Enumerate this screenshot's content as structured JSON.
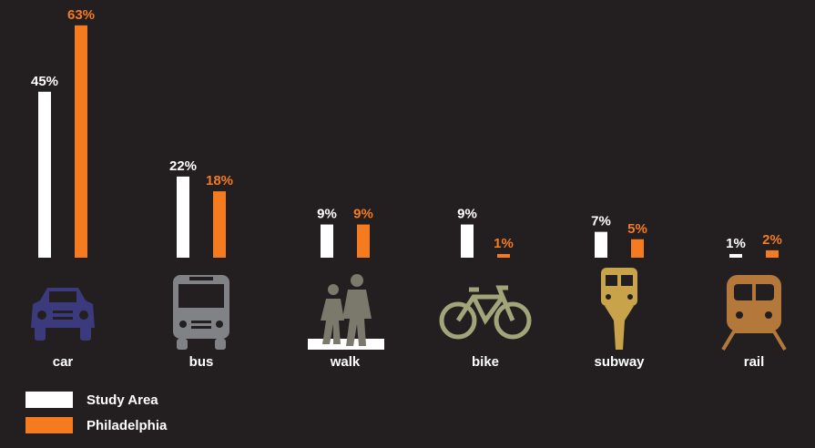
{
  "chart_data": {
    "type": "bar",
    "categories": [
      "car",
      "bus",
      "walk",
      "bike",
      "subway",
      "rail"
    ],
    "series": [
      {
        "name": "Study Area",
        "color": "#ffffff",
        "values": [
          45,
          22,
          9,
          9,
          7,
          1
        ],
        "value_labels": [
          "45%",
          "22%",
          "9%",
          "9%",
          "7%",
          "1%"
        ]
      },
      {
        "name": "Philadelphia",
        "color": "#f47b20",
        "values": [
          63,
          18,
          9,
          1,
          5,
          2
        ],
        "value_labels": [
          "63%",
          "18%",
          "9%",
          "1%",
          "5%",
          "2%"
        ]
      }
    ]
  }
}
